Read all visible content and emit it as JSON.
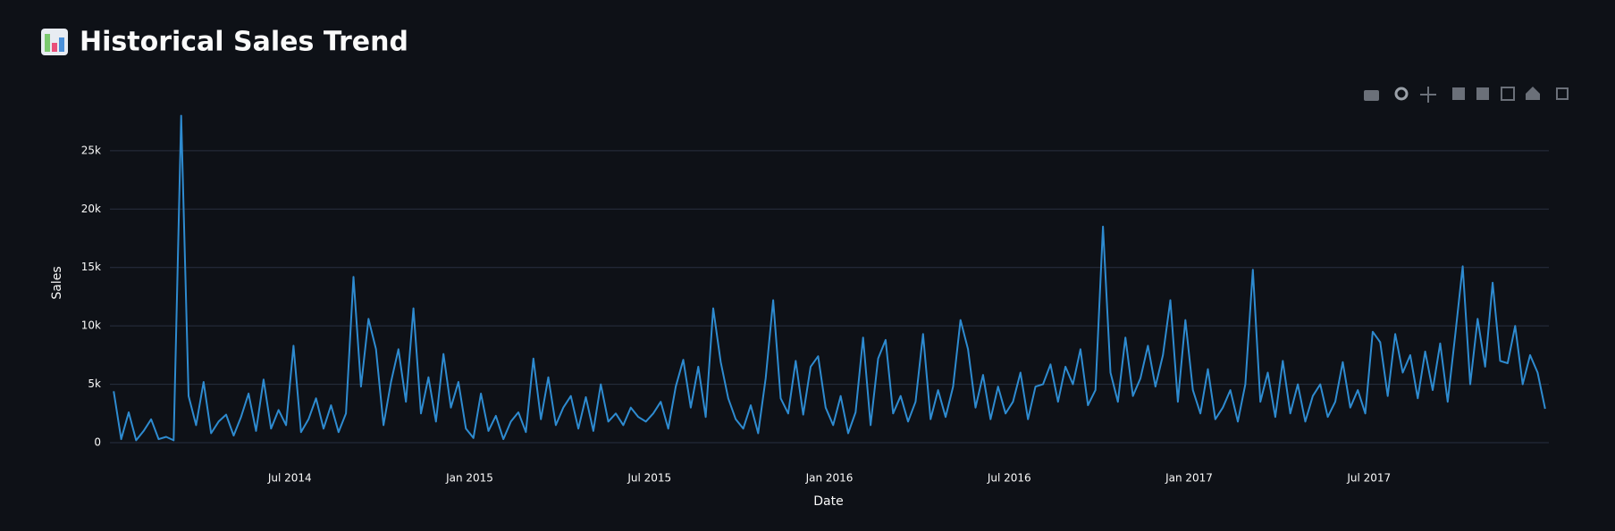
{
  "chart_data": {
    "type": "line",
    "title": "Historical Sales Trend",
    "x_label": "Date",
    "y_label": "Sales",
    "color": "#2e8bd0",
    "grid": true,
    "x": [
      "Jan 2014",
      "Jan 2014",
      "Jan 2014",
      "Jan 2014",
      "Feb 2014",
      "Feb 2014",
      "Feb 2014",
      "Feb 2014",
      "Mar 2014",
      "Mar 2014",
      "Mar 2014",
      "Mar 2014",
      "Apr 2014",
      "Apr 2014",
      "Apr 2014",
      "Apr 2014",
      "May 2014",
      "May 2014",
      "May 2014",
      "May 2014",
      "Jun 2014",
      "Jun 2014",
      "Jun 2014",
      "Jun 2014",
      "Jul 2014",
      "Jul 2014",
      "Jul 2014",
      "Jul 2014",
      "Aug 2014",
      "Aug 2014",
      "Aug 2014",
      "Aug 2014",
      "Sep 2014",
      "Sep 2014",
      "Sep 2014",
      "Sep 2014",
      "Oct 2014",
      "Oct 2014",
      "Oct 2014",
      "Oct 2014",
      "Nov 2014",
      "Nov 2014",
      "Nov 2014",
      "Nov 2014",
      "Dec 2014",
      "Dec 2014",
      "Dec 2014",
      "Dec 2014",
      "Jan 2015",
      "Jan 2015",
      "Jan 2015",
      "Jan 2015",
      "Feb 2015",
      "Feb 2015",
      "Feb 2015",
      "Feb 2015",
      "Mar 2015",
      "Mar 2015",
      "Mar 2015",
      "Mar 2015",
      "Apr 2015",
      "Apr 2015",
      "Apr 2015",
      "Apr 2015",
      "May 2015",
      "May 2015",
      "May 2015",
      "May 2015",
      "Jun 2015",
      "Jun 2015",
      "Jun 2015",
      "Jun 2015",
      "Jul 2015",
      "Jul 2015",
      "Jul 2015",
      "Jul 2015",
      "Aug 2015",
      "Aug 2015",
      "Aug 2015",
      "Aug 2015",
      "Sep 2015",
      "Sep 2015",
      "Sep 2015",
      "Sep 2015",
      "Oct 2015",
      "Oct 2015",
      "Oct 2015",
      "Oct 2015",
      "Nov 2015",
      "Nov 2015",
      "Nov 2015",
      "Nov 2015",
      "Dec 2015",
      "Dec 2015",
      "Dec 2015",
      "Dec 2015",
      "Jan 2016",
      "Jan 2016",
      "Jan 2016",
      "Jan 2016",
      "Feb 2016",
      "Feb 2016",
      "Feb 2016",
      "Feb 2016",
      "Mar 2016",
      "Mar 2016",
      "Mar 2016",
      "Mar 2016",
      "Apr 2016",
      "Apr 2016",
      "Apr 2016",
      "Apr 2016",
      "May 2016",
      "May 2016",
      "May 2016",
      "May 2016",
      "Jun 2016",
      "Jun 2016",
      "Jun 2016",
      "Jun 2016",
      "Jul 2016",
      "Jul 2016",
      "Jul 2016",
      "Jul 2016",
      "Aug 2016",
      "Aug 2016",
      "Aug 2016",
      "Aug 2016",
      "Sep 2016",
      "Sep 2016",
      "Sep 2016",
      "Sep 2016",
      "Oct 2016",
      "Oct 2016",
      "Oct 2016",
      "Oct 2016",
      "Nov 2016",
      "Nov 2016",
      "Nov 2016",
      "Nov 2016",
      "Dec 2016",
      "Dec 2016",
      "Dec 2016",
      "Dec 2016",
      "Jan 2017",
      "Jan 2017",
      "Jan 2017",
      "Jan 2017",
      "Feb 2017",
      "Feb 2017",
      "Feb 2017",
      "Feb 2017",
      "Mar 2017",
      "Mar 2017",
      "Mar 2017",
      "Mar 2017",
      "Apr 2017",
      "Apr 2017",
      "Apr 2017",
      "Apr 2017",
      "May 2017",
      "May 2017",
      "May 2017",
      "May 2017",
      "Jun 2017",
      "Jun 2017",
      "Jun 2017",
      "Jun 2017",
      "Jul 2017",
      "Jul 2017",
      "Jul 2017",
      "Jul 2017",
      "Aug 2017",
      "Aug 2017",
      "Aug 2017",
      "Aug 2017",
      "Sep 2017",
      "Sep 2017",
      "Sep 2017",
      "Sep 2017",
      "Oct 2017",
      "Oct 2017",
      "Oct 2017",
      "Oct 2017",
      "Nov 2017",
      "Nov 2017",
      "Nov 2017",
      "Nov 2017",
      "Dec 2017",
      "Dec 2017",
      "Dec 2017",
      "Dec 2017"
    ],
    "values": [
      4400,
      300,
      2600,
      200,
      1000,
      2000,
      300,
      500,
      200,
      28000,
      4000,
      1500,
      5200,
      800,
      1800,
      2400,
      600,
      2200,
      4200,
      1000,
      5400,
      1200,
      2800,
      1500,
      8300,
      900,
      2000,
      3800,
      1200,
      3200,
      900,
      2500,
      14200,
      4800,
      10600,
      8000,
      1500,
      5200,
      8000,
      3500,
      11500,
      2500,
      5600,
      1800,
      7600,
      3000,
      5200,
      1200,
      400,
      4200,
      1000,
      2300,
      300,
      1800,
      2600,
      900,
      7200,
      2000,
      5600,
      1500,
      3000,
      4000,
      1200,
      3900,
      1000,
      5000,
      1800,
      2500,
      1500,
      3000,
      2200,
      1800,
      2500,
      3500,
      1200,
      4800,
      7100,
      3000,
      6500,
      2200,
      11500,
      6900,
      3800,
      2000,
      1200,
      3200,
      800,
      5500,
      12200,
      3800,
      2500,
      7000,
      2400,
      6500,
      7400,
      3000,
      1500,
      4000,
      800,
      2600,
      9000,
      1500,
      7200,
      8800,
      2500,
      4000,
      1800,
      3500,
      9300,
      2000,
      4500,
      2200,
      4800,
      10500,
      8000,
      3000,
      5800,
      2000,
      4800,
      2500,
      3500,
      6000,
      2000,
      4800,
      5000,
      6700,
      3500,
      6500,
      5000,
      8000,
      3200,
      4500,
      18500,
      6000,
      3500,
      9000,
      4000,
      5500,
      8300,
      4800,
      7500,
      12200,
      3500,
      10500,
      4500,
      2500,
      6300,
      2000,
      3000,
      4500,
      1800,
      5000,
      14800,
      3500,
      6000,
      2200,
      7000,
      2500,
      5000,
      1800,
      4000,
      5000,
      2200,
      3500,
      6900,
      3000,
      4500,
      2500,
      9500,
      8600,
      4000,
      9300,
      6000,
      7500,
      3800,
      7800,
      4500,
      8500,
      3500,
      9200,
      15100,
      5000,
      10600,
      6500,
      13700,
      7000,
      6800,
      10000,
      5000,
      7500,
      6000,
      2900
    ],
    "xticks": [
      "Jul 2014",
      "Jan 2015",
      "Jul 2015",
      "Jan 2016",
      "Jul 2016",
      "Jan 2017",
      "Jul 2017"
    ],
    "ylim": [
      0,
      29500
    ],
    "yticks": [
      0,
      {
        "value": 5000,
        "label": "5k"
      },
      {
        "value": 10000,
        "label": "10k"
      },
      {
        "value": 15000,
        "label": "15k"
      },
      {
        "value": 20000,
        "label": "20k"
      },
      {
        "value": 25000,
        "label": "25k"
      }
    ]
  }
}
